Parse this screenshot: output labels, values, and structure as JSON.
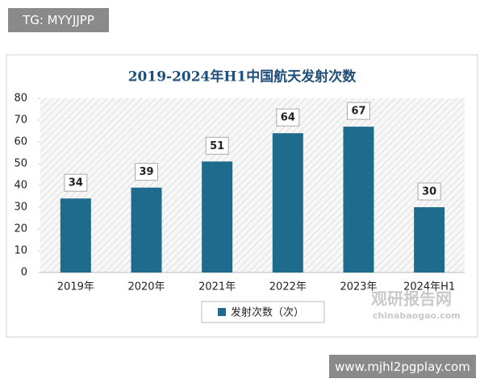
{
  "header": {
    "tag": "TG: MYYJJPP"
  },
  "footer": {
    "url": "www.mjhl2pgplay.com"
  },
  "watermark": {
    "name": "观研报告网",
    "url": "chinabaogao.com"
  },
  "chart_data": {
    "type": "bar",
    "title": "2019-2024年H1中国航天发射次数",
    "categories": [
      "2019年",
      "2020年",
      "2021年",
      "2022年",
      "2023年",
      "2024年H1"
    ],
    "series": [
      {
        "name": "发射次数（次）",
        "color": "#1f6b8e",
        "values": [
          34,
          39,
          51,
          64,
          67,
          30
        ]
      }
    ],
    "ylim": [
      0,
      80
    ],
    "yticks": [
      0,
      10,
      20,
      30,
      40,
      50,
      60,
      70,
      80
    ],
    "legend": "bottom"
  }
}
